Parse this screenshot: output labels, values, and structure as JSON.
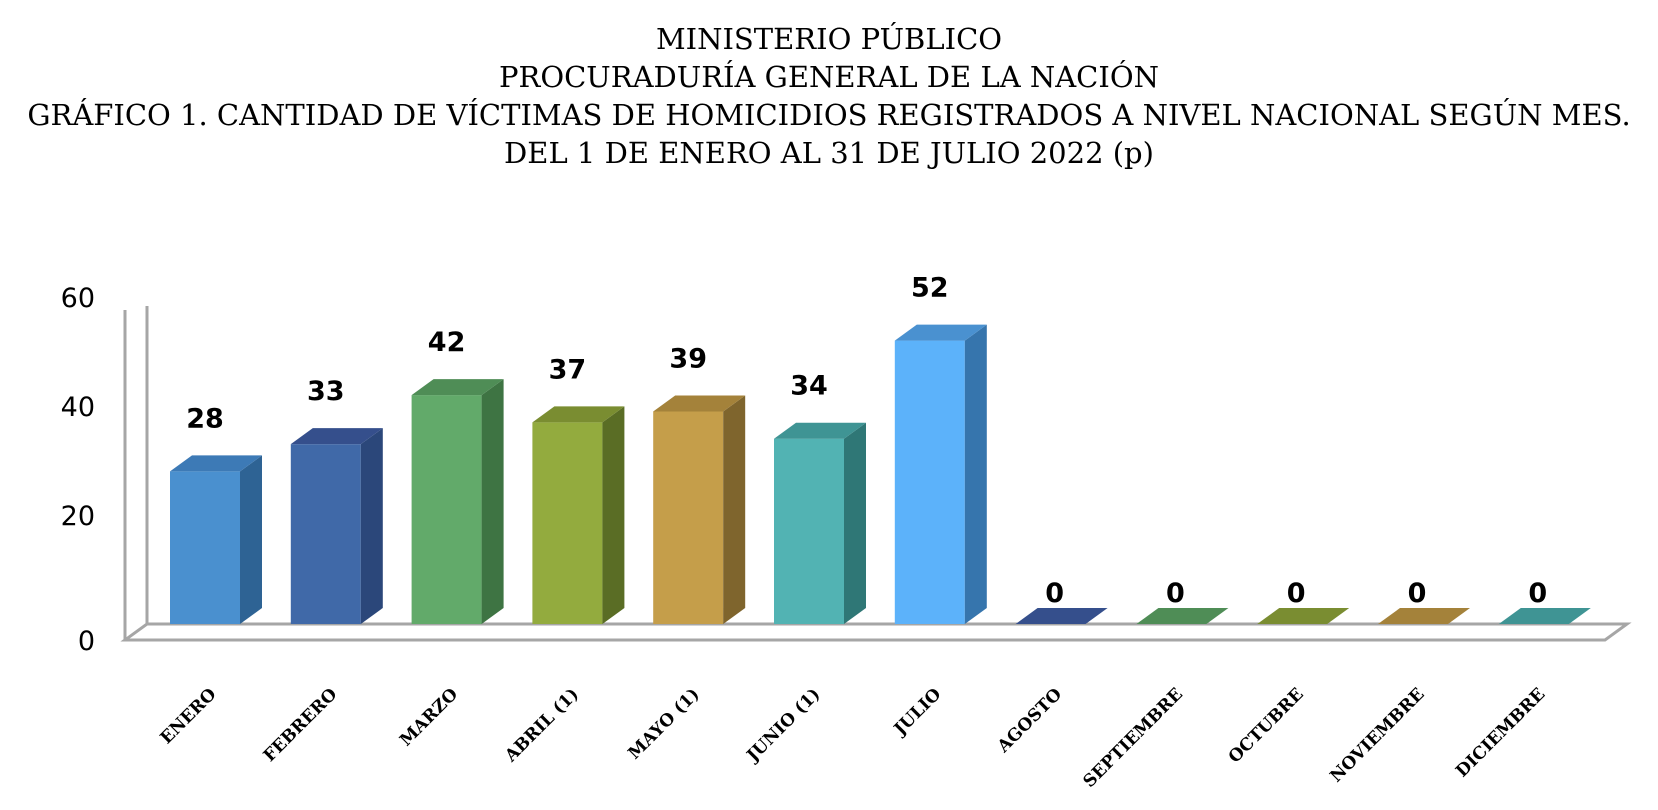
{
  "titles": {
    "line1": "MINISTERIO PÚBLICO",
    "line2": "PROCURADURÍA GENERAL DE LA NACIÓN",
    "line3": "GRÁFICO 1. CANTIDAD DE VÍCTIMAS DE HOMICIDIOS REGISTRADOS A NIVEL NACIONAL SEGÚN MES.",
    "line4": "DEL 1 DE ENERO AL 31 DE JULIO 2022 (p)"
  },
  "chart_data": {
    "type": "bar",
    "categories": [
      "ENERO",
      "FEBRERO",
      "MARZO",
      "ABRIL  (1)",
      "MAYO (1)",
      "JUNIO (1)",
      "JULIO",
      "AGOSTO",
      "SEPTIEMBRE",
      "OCTUBRE",
      "NOVIEMBRE",
      "DICIEMBRE"
    ],
    "values": [
      28,
      33,
      42,
      37,
      39,
      34,
      52,
      0,
      0,
      0,
      0,
      0
    ],
    "data_labels": [
      "28",
      "33",
      "42",
      "37",
      "39",
      "34",
      "52",
      "0",
      "0",
      "0",
      "0",
      "0"
    ],
    "ylim": [
      0,
      60
    ],
    "yticks": [
      0,
      20,
      40,
      60
    ],
    "ytick_labels": [
      "0",
      "20",
      "40",
      "60"
    ],
    "grid": false,
    "legend": "none",
    "three_d": true,
    "colors": {
      "front": [
        "#4a90cf",
        "#4069a8",
        "#62aa6a",
        "#93ab3e",
        "#c59e4a",
        "#52b3b3",
        "#5cb2fa",
        "#4069a8",
        "#62aa6a",
        "#93ab3e",
        "#c59e4a",
        "#52b3b3"
      ],
      "side": [
        "#2e6394",
        "#2b477a",
        "#3e7443",
        "#5a6d25",
        "#7f652d",
        "#2f7776",
        "#3675ad",
        "#2b477a",
        "#3e7443",
        "#5a6d25",
        "#7f652d",
        "#2f7776"
      ],
      "top": [
        "#3d7ab6",
        "#354f8c",
        "#4f8d56",
        "#7a8d31",
        "#a4823a",
        "#3f9494",
        "#4a91d0",
        "#354f8c",
        "#4f8d56",
        "#7a8d31",
        "#a4823a",
        "#3f9494"
      ],
      "axis": "#a6a6a6"
    }
  }
}
